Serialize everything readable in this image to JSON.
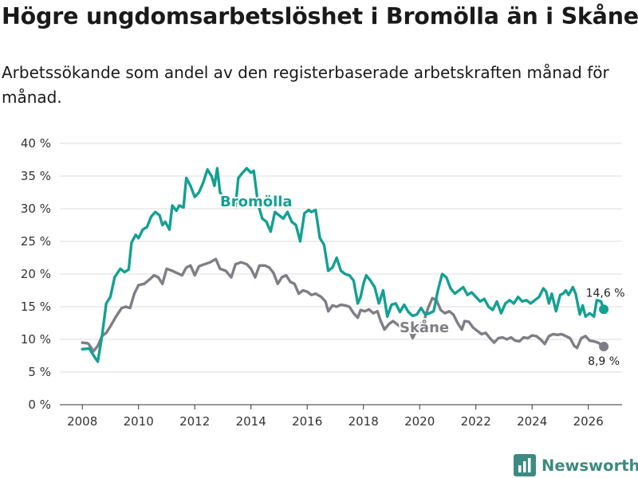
{
  "title": "Högre ungdomsarbetslöshet i Bromölla än i Skåne",
  "subtitle": "Arbetssökande som andel av den registerbaserade arbetskraften månad för månad.",
  "brand": "Newsworthy",
  "colors": {
    "bromolla": "#14a093",
    "skane": "#7f7e86",
    "grid": "#dcdcdc",
    "axis": "#333333",
    "brand": "#3d8a80"
  },
  "icons": {
    "brand": "bar-chart-logo-icon"
  },
  "chart_data": {
    "type": "line",
    "ylim": [
      0,
      40
    ],
    "xlim": [
      2007.2,
      2027.2
    ],
    "y_ticks": [
      0,
      5,
      10,
      15,
      20,
      25,
      30,
      35,
      40
    ],
    "y_tick_labels": [
      "0 %",
      "5 %",
      "10 %",
      "15 %",
      "20 %",
      "25 %",
      "30 %",
      "35 %",
      "40 %"
    ],
    "x_ticks": [
      2008,
      2010,
      2012,
      2014,
      2016,
      2018,
      2020,
      2022,
      2024,
      2026
    ],
    "x_tick_labels": [
      "2008",
      "2010",
      "2012",
      "2014",
      "2016",
      "2018",
      "2020",
      "2022",
      "2024",
      "2026"
    ],
    "grid": true,
    "series": [
      {
        "name": "Bromölla",
        "label": "Bromölla",
        "end_label": "14,6 %",
        "points": [
          [
            2008.0,
            8.5
          ],
          [
            2008.25,
            8.6
          ],
          [
            2008.45,
            7.2
          ],
          [
            2008.55,
            6.6
          ],
          [
            2008.7,
            10.5
          ],
          [
            2008.85,
            15.5
          ],
          [
            2009.0,
            16.5
          ],
          [
            2009.15,
            19.5
          ],
          [
            2009.35,
            20.8
          ],
          [
            2009.5,
            20.3
          ],
          [
            2009.65,
            20.7
          ],
          [
            2009.75,
            24.8
          ],
          [
            2009.9,
            26.0
          ],
          [
            2010.0,
            25.5
          ],
          [
            2010.15,
            26.8
          ],
          [
            2010.3,
            27.2
          ],
          [
            2010.45,
            28.8
          ],
          [
            2010.6,
            29.5
          ],
          [
            2010.75,
            29.0
          ],
          [
            2010.85,
            27.5
          ],
          [
            2010.95,
            28.0
          ],
          [
            2011.1,
            26.8
          ],
          [
            2011.2,
            30.5
          ],
          [
            2011.35,
            29.7
          ],
          [
            2011.45,
            30.5
          ],
          [
            2011.6,
            30.2
          ],
          [
            2011.7,
            34.7
          ],
          [
            2011.85,
            33.5
          ],
          [
            2012.0,
            31.8
          ],
          [
            2012.15,
            32.5
          ],
          [
            2012.3,
            34.0
          ],
          [
            2012.45,
            36.0
          ],
          [
            2012.6,
            35.0
          ],
          [
            2012.7,
            33.5
          ],
          [
            2012.8,
            36.2
          ],
          [
            2012.9,
            32.5
          ],
          [
            2013.05,
            31.5
          ],
          [
            2013.15,
            31.0
          ],
          [
            2013.3,
            31.5
          ],
          [
            2013.45,
            30.3
          ],
          [
            2013.55,
            34.7
          ],
          [
            2013.7,
            35.5
          ],
          [
            2013.85,
            36.2
          ],
          [
            2014.0,
            35.5
          ],
          [
            2014.1,
            35.8
          ],
          [
            2014.25,
            30.8
          ],
          [
            2014.4,
            28.5
          ],
          [
            2014.55,
            28.0
          ],
          [
            2014.7,
            26.5
          ],
          [
            2014.85,
            29.5
          ],
          [
            2015.0,
            29.0
          ],
          [
            2015.15,
            28.5
          ],
          [
            2015.3,
            29.5
          ],
          [
            2015.45,
            28.0
          ],
          [
            2015.6,
            27.5
          ],
          [
            2015.75,
            25.0
          ],
          [
            2015.9,
            29.3
          ],
          [
            2016.05,
            29.8
          ],
          [
            2016.15,
            29.5
          ],
          [
            2016.3,
            29.8
          ],
          [
            2016.45,
            25.5
          ],
          [
            2016.6,
            24.5
          ],
          [
            2016.75,
            20.5
          ],
          [
            2016.9,
            21.0
          ],
          [
            2017.05,
            22.5
          ],
          [
            2017.2,
            20.5
          ],
          [
            2017.35,
            20.0
          ],
          [
            2017.5,
            19.8
          ],
          [
            2017.65,
            19.0
          ],
          [
            2017.8,
            15.5
          ],
          [
            2017.9,
            16.5
          ],
          [
            2018.0,
            18.5
          ],
          [
            2018.1,
            19.8
          ],
          [
            2018.25,
            19.0
          ],
          [
            2018.4,
            18.0
          ],
          [
            2018.55,
            15.5
          ],
          [
            2018.7,
            17.5
          ],
          [
            2018.85,
            13.5
          ],
          [
            2019.0,
            15.3
          ],
          [
            2019.15,
            15.5
          ],
          [
            2019.3,
            14.2
          ],
          [
            2019.45,
            15.3
          ],
          [
            2019.6,
            14.2
          ],
          [
            2019.75,
            13.6
          ],
          [
            2019.9,
            13.8
          ],
          [
            2020.05,
            14.8
          ],
          [
            2020.2,
            13.8
          ],
          [
            2020.35,
            14.0
          ],
          [
            2020.5,
            14.3
          ],
          [
            2020.65,
            17.5
          ],
          [
            2020.8,
            20.0
          ],
          [
            2020.95,
            19.5
          ],
          [
            2021.1,
            17.8
          ],
          [
            2021.25,
            17.0
          ],
          [
            2021.4,
            17.5
          ],
          [
            2021.55,
            18.0
          ],
          [
            2021.7,
            16.8
          ],
          [
            2021.85,
            17.2
          ],
          [
            2022.0,
            16.5
          ],
          [
            2022.15,
            15.8
          ],
          [
            2022.3,
            16.2
          ],
          [
            2022.45,
            15.0
          ],
          [
            2022.6,
            14.5
          ],
          [
            2022.75,
            15.8
          ],
          [
            2022.9,
            14.0
          ],
          [
            2023.05,
            15.5
          ],
          [
            2023.2,
            16.0
          ],
          [
            2023.35,
            15.5
          ],
          [
            2023.5,
            16.5
          ],
          [
            2023.65,
            15.8
          ],
          [
            2023.8,
            16.0
          ],
          [
            2023.95,
            15.5
          ],
          [
            2024.1,
            16.0
          ],
          [
            2024.25,
            16.5
          ],
          [
            2024.4,
            17.8
          ],
          [
            2024.5,
            17.3
          ],
          [
            2024.6,
            15.5
          ],
          [
            2024.7,
            17.0
          ],
          [
            2024.85,
            14.3
          ],
          [
            2025.0,
            16.8
          ],
          [
            2025.1,
            17.0
          ],
          [
            2025.2,
            17.5
          ],
          [
            2025.3,
            16.8
          ],
          [
            2025.45,
            18.0
          ],
          [
            2025.55,
            17.0
          ],
          [
            2025.7,
            13.8
          ],
          [
            2025.8,
            15.2
          ],
          [
            2025.9,
            13.5
          ],
          [
            2026.05,
            14.0
          ],
          [
            2026.2,
            13.5
          ],
          [
            2026.3,
            16.0
          ],
          [
            2026.45,
            15.8
          ],
          [
            2026.55,
            14.6
          ]
        ]
      },
      {
        "name": "Skåne",
        "label": "Skåne",
        "end_label": "8,9 %",
        "points": [
          [
            2008.0,
            9.5
          ],
          [
            2008.2,
            9.4
          ],
          [
            2008.4,
            8.2
          ],
          [
            2008.55,
            9.0
          ],
          [
            2008.7,
            10.5
          ],
          [
            2008.85,
            11.0
          ],
          [
            2009.0,
            12.0
          ],
          [
            2009.2,
            13.5
          ],
          [
            2009.4,
            14.8
          ],
          [
            2009.55,
            15.0
          ],
          [
            2009.7,
            14.8
          ],
          [
            2009.85,
            17.0
          ],
          [
            2010.0,
            18.3
          ],
          [
            2010.2,
            18.5
          ],
          [
            2010.4,
            19.2
          ],
          [
            2010.55,
            19.8
          ],
          [
            2010.7,
            19.5
          ],
          [
            2010.85,
            18.5
          ],
          [
            2011.0,
            20.8
          ],
          [
            2011.2,
            20.5
          ],
          [
            2011.35,
            20.2
          ],
          [
            2011.55,
            19.8
          ],
          [
            2011.7,
            21.0
          ],
          [
            2011.85,
            21.3
          ],
          [
            2012.0,
            19.8
          ],
          [
            2012.15,
            21.2
          ],
          [
            2012.35,
            21.5
          ],
          [
            2012.55,
            21.8
          ],
          [
            2012.75,
            22.3
          ],
          [
            2012.9,
            20.8
          ],
          [
            2013.1,
            20.5
          ],
          [
            2013.3,
            19.5
          ],
          [
            2013.45,
            21.5
          ],
          [
            2013.65,
            21.8
          ],
          [
            2013.85,
            21.5
          ],
          [
            2014.0,
            20.8
          ],
          [
            2014.15,
            19.5
          ],
          [
            2014.3,
            21.3
          ],
          [
            2014.5,
            21.3
          ],
          [
            2014.65,
            21.0
          ],
          [
            2014.8,
            20.2
          ],
          [
            2014.95,
            18.5
          ],
          [
            2015.1,
            19.5
          ],
          [
            2015.25,
            19.8
          ],
          [
            2015.4,
            18.8
          ],
          [
            2015.55,
            18.5
          ],
          [
            2015.7,
            17.0
          ],
          [
            2015.85,
            17.5
          ],
          [
            2016.0,
            17.3
          ],
          [
            2016.15,
            16.8
          ],
          [
            2016.3,
            17.0
          ],
          [
            2016.5,
            16.5
          ],
          [
            2016.65,
            15.8
          ],
          [
            2016.75,
            14.3
          ],
          [
            2016.9,
            15.2
          ],
          [
            2017.05,
            15.0
          ],
          [
            2017.2,
            15.3
          ],
          [
            2017.35,
            15.2
          ],
          [
            2017.5,
            15.0
          ],
          [
            2017.65,
            14.0
          ],
          [
            2017.8,
            13.3
          ],
          [
            2017.9,
            14.5
          ],
          [
            2018.05,
            14.3
          ],
          [
            2018.2,
            14.6
          ],
          [
            2018.35,
            14.0
          ],
          [
            2018.5,
            14.3
          ],
          [
            2018.6,
            13.0
          ],
          [
            2018.75,
            11.5
          ],
          [
            2018.9,
            12.3
          ],
          [
            2019.05,
            12.8
          ],
          [
            2019.2,
            12.3
          ],
          [
            2019.35,
            11.8
          ],
          [
            2019.5,
            12.0
          ],
          [
            2019.65,
            11.3
          ],
          [
            2019.75,
            10.2
          ],
          [
            2019.9,
            11.5
          ],
          [
            2020.05,
            12.5
          ],
          [
            2020.15,
            12.8
          ],
          [
            2020.3,
            14.8
          ],
          [
            2020.45,
            16.3
          ],
          [
            2020.6,
            16.0
          ],
          [
            2020.75,
            14.5
          ],
          [
            2020.9,
            14.0
          ],
          [
            2021.05,
            14.3
          ],
          [
            2021.2,
            13.8
          ],
          [
            2021.35,
            12.5
          ],
          [
            2021.5,
            11.5
          ],
          [
            2021.6,
            12.8
          ],
          [
            2021.75,
            12.7
          ],
          [
            2021.9,
            11.8
          ],
          [
            2022.05,
            11.3
          ],
          [
            2022.2,
            10.8
          ],
          [
            2022.35,
            11.0
          ],
          [
            2022.5,
            10.2
          ],
          [
            2022.65,
            9.5
          ],
          [
            2022.8,
            10.2
          ],
          [
            2022.95,
            10.3
          ],
          [
            2023.1,
            10.0
          ],
          [
            2023.25,
            10.3
          ],
          [
            2023.4,
            9.8
          ],
          [
            2023.55,
            9.7
          ],
          [
            2023.7,
            10.3
          ],
          [
            2023.85,
            10.2
          ],
          [
            2024.0,
            10.6
          ],
          [
            2024.15,
            10.5
          ],
          [
            2024.3,
            10.0
          ],
          [
            2024.45,
            9.3
          ],
          [
            2024.6,
            10.5
          ],
          [
            2024.75,
            10.8
          ],
          [
            2024.9,
            10.7
          ],
          [
            2025.05,
            10.8
          ],
          [
            2025.2,
            10.5
          ],
          [
            2025.35,
            10.2
          ],
          [
            2025.5,
            9.0
          ],
          [
            2025.6,
            8.7
          ],
          [
            2025.75,
            10.2
          ],
          [
            2025.9,
            10.5
          ],
          [
            2026.05,
            9.8
          ],
          [
            2026.2,
            9.7
          ],
          [
            2026.35,
            9.5
          ],
          [
            2026.55,
            8.9
          ]
        ]
      }
    ]
  }
}
